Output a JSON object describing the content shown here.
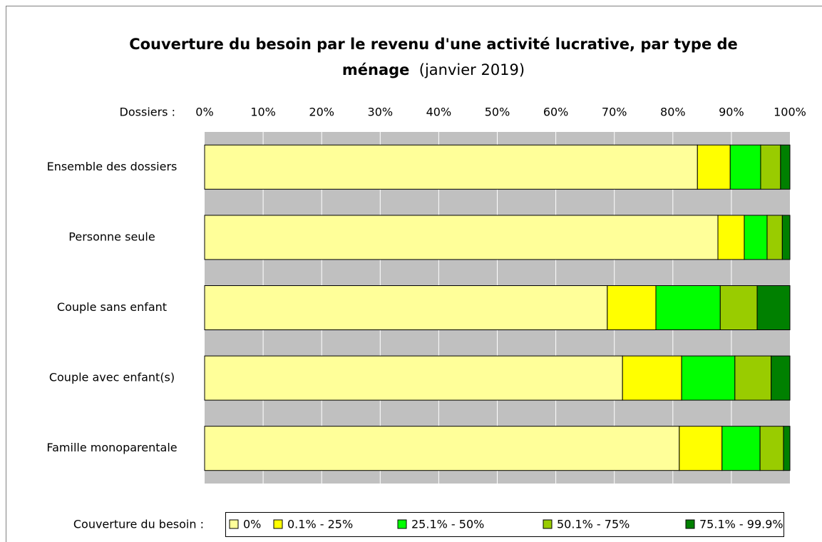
{
  "chart_data": {
    "type": "stacked_barh",
    "title": "Couverture du besoin par le revenu d'une activité lucrative, par type de ménage",
    "title_note": "(janvier 2019)",
    "axis_label": "Dossiers :",
    "legend_title": "Couverture du besoin :",
    "categories": [
      "Ensemble des dossiers",
      "Personne seule",
      "Couple sans enfant",
      "Couple avec enfant(s)",
      "Famille monoparentale"
    ],
    "series": [
      {
        "name": "0%",
        "color": "#ffff99",
        "values": [
          84.2,
          87.7,
          68.8,
          71.4,
          81.1
        ]
      },
      {
        "name": "0.1% - 25%",
        "color": "#ffff00",
        "values": [
          5.6,
          4.5,
          8.3,
          10.1,
          7.3
        ]
      },
      {
        "name": "25.1% - 50%",
        "color": "#00ff00",
        "values": [
          5.2,
          3.9,
          11.0,
          9.1,
          6.5
        ]
      },
      {
        "name": "50.1% - 75%",
        "color": "#99cc00",
        "values": [
          3.4,
          2.6,
          6.3,
          6.2,
          4.0
        ]
      },
      {
        "name": "75.1% - 99.9%",
        "color": "#008000",
        "values": [
          1.6,
          1.3,
          5.6,
          3.2,
          1.1
        ]
      }
    ],
    "xlim": [
      0,
      100
    ],
    "xticks": [
      {
        "value": 0,
        "label": "0%"
      },
      {
        "value": 10,
        "label": "10%"
      },
      {
        "value": 20,
        "label": "20%"
      },
      {
        "value": 30,
        "label": "30%"
      },
      {
        "value": 40,
        "label": "40%"
      },
      {
        "value": 50,
        "label": "50%"
      },
      {
        "value": 60,
        "label": "60%"
      },
      {
        "value": 70,
        "label": "70%"
      },
      {
        "value": 80,
        "label": "80%"
      },
      {
        "value": 90,
        "label": "90%"
      },
      {
        "value": 100,
        "label": "100%"
      }
    ],
    "grid": true
  }
}
